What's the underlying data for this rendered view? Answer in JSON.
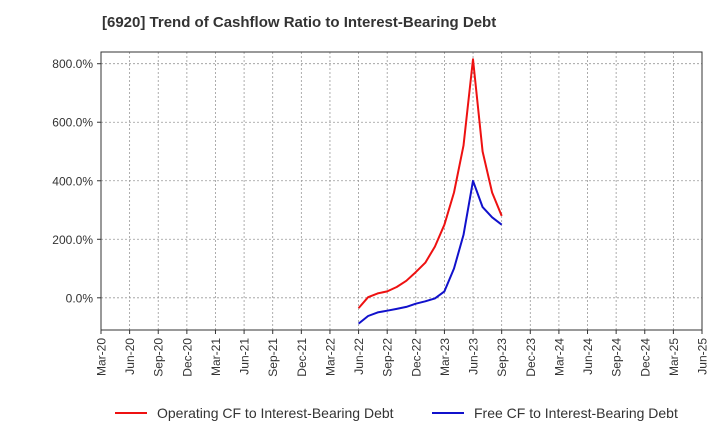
{
  "chart_data": {
    "type": "line",
    "title": "[6920]  Trend of Cashflow Ratio to Interest-Bearing Debt",
    "xlabel": "",
    "ylabel": "",
    "y_ticks": [
      0,
      200,
      400,
      600,
      800
    ],
    "y_tick_labels": [
      "0.0%",
      "200.0%",
      "400.0%",
      "600.0%",
      "800.0%"
    ],
    "ylim": [
      -110,
      840
    ],
    "x_tick_labels": [
      "Mar-20",
      "Jun-20",
      "Sep-20",
      "Dec-20",
      "Mar-21",
      "Jun-21",
      "Sep-21",
      "Dec-21",
      "Mar-22",
      "Jun-22",
      "Sep-22",
      "Dec-22",
      "Mar-23",
      "Jun-23",
      "Sep-23",
      "Dec-23",
      "Mar-24",
      "Jun-24",
      "Sep-24",
      "Dec-24",
      "Mar-25",
      "Jun-25"
    ],
    "x": [
      "Jun-22",
      "Jul-22",
      "Aug-22",
      "Sep-22",
      "Oct-22",
      "Nov-22",
      "Dec-22",
      "Jan-23",
      "Feb-23",
      "Mar-23",
      "Apr-23",
      "May-23",
      "Jun-23",
      "Jul-23",
      "Aug-23",
      "Sep-23"
    ],
    "series": [
      {
        "name": "Operating CF to Interest-Bearing Debt",
        "color": "#ee1111",
        "values": [
          -35,
          2,
          15,
          22,
          37,
          58,
          88,
          120,
          175,
          250,
          360,
          520,
          815,
          500,
          360,
          280
        ]
      },
      {
        "name": "Free CF to Interest-Bearing Debt",
        "color": "#1111cc",
        "values": [
          -88,
          -62,
          -50,
          -44,
          -38,
          -31,
          -20,
          -12,
          -2,
          22,
          100,
          215,
          400,
          310,
          275,
          250
        ]
      }
    ],
    "grid": true,
    "legend_position": "bottom"
  }
}
